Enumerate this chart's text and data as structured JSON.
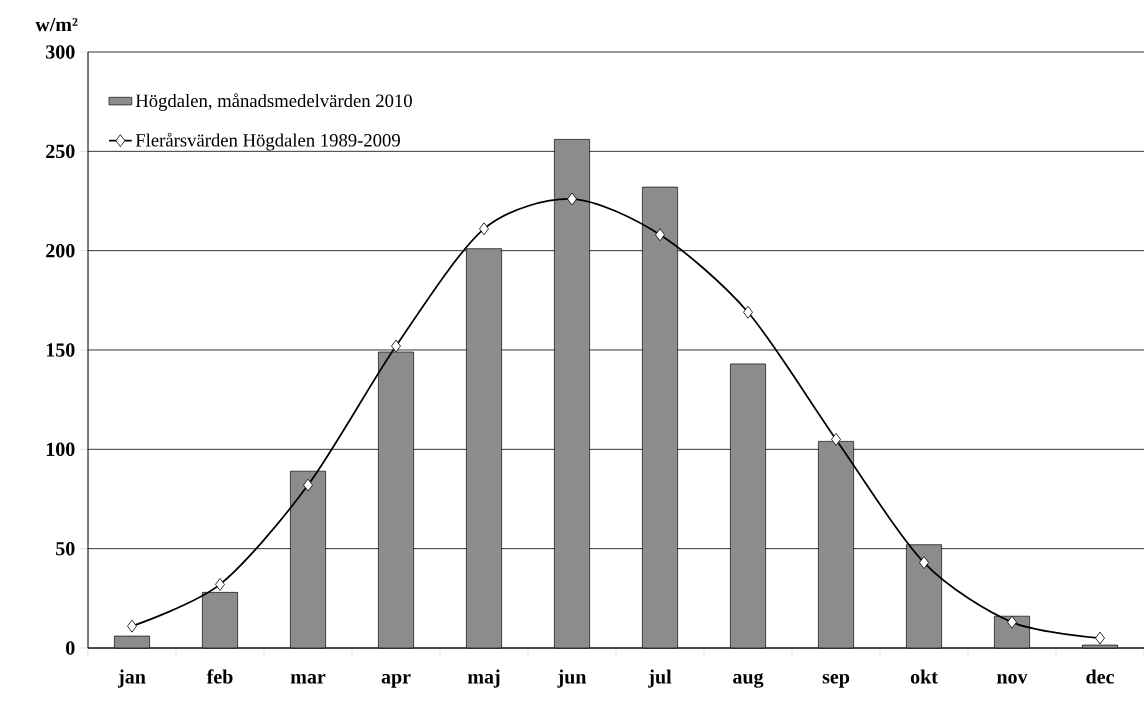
{
  "chart_data": {
    "type": "bar",
    "ylabel": "w/m²",
    "categories": [
      "jan",
      "feb",
      "mar",
      "apr",
      "maj",
      "jun",
      "jul",
      "aug",
      "sep",
      "okt",
      "nov",
      "dec"
    ],
    "series": [
      {
        "name": "Högdalen, månadsmedelvärden 2010",
        "color": "#8c8c8c",
        "values": [
          6,
          28,
          89,
          149,
          201,
          256,
          232,
          143,
          104,
          52,
          16,
          1.5
        ]
      },
      {
        "name": "Flerårsvärden Högdalen 1989-2009",
        "type": "line",
        "color": "#000000",
        "marker": "diamond",
        "line_style": "solid",
        "values": [
          11,
          32,
          82,
          152,
          211,
          226,
          208,
          169,
          105,
          43,
          13,
          5
        ]
      }
    ],
    "ylim": [
      0,
      300
    ],
    "yticks": [
      0,
      50,
      100,
      150,
      200,
      250,
      300
    ],
    "grid": "y",
    "legend": "top left"
  }
}
